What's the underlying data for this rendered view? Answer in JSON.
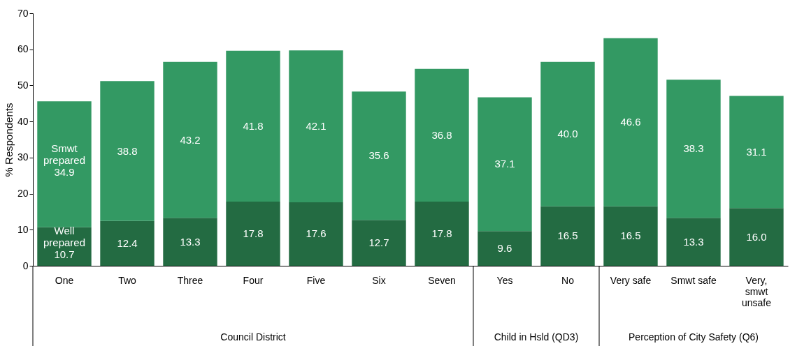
{
  "chart_data": {
    "type": "bar",
    "stacked": true,
    "ylabel": "% Respondents",
    "categories": [
      "One",
      "Two",
      "Three",
      "Four",
      "Five",
      "Six",
      "Seven",
      "Yes",
      "No",
      "Very safe",
      "Smwt safe",
      "Very, smwt unsafe"
    ],
    "series": [
      {
        "name": "Well prepared",
        "color": "#236b42",
        "values": [
          10.7,
          12.4,
          13.3,
          17.8,
          17.6,
          12.7,
          17.8,
          9.6,
          16.5,
          16.5,
          13.3,
          16.0
        ],
        "value_labels": [
          "10.7",
          "12.4",
          "13.3",
          "17.8",
          "17.6",
          "12.7",
          "17.8",
          "9.6",
          "16.5",
          "16.5",
          "13.3",
          "16.0"
        ]
      },
      {
        "name": "Smwt prepared",
        "color": "#339963",
        "values": [
          34.9,
          38.8,
          43.2,
          41.8,
          42.1,
          35.6,
          36.8,
          37.1,
          40.0,
          46.6,
          38.3,
          31.1
        ],
        "value_labels": [
          "34.9",
          "38.8",
          "43.2",
          "41.8",
          "42.1",
          "35.6",
          "36.8",
          "37.1",
          "40.0",
          "46.6",
          "38.3",
          "31.1"
        ]
      }
    ],
    "ylim": [
      0,
      70
    ],
    "yticks": [
      0,
      10,
      20,
      30,
      40,
      50,
      60,
      70
    ],
    "grid": false,
    "legend": false,
    "annotations": [
      "Council District",
      "Child in Hsld (QD3)",
      "Perception of City Safety (Q6)"
    ]
  }
}
